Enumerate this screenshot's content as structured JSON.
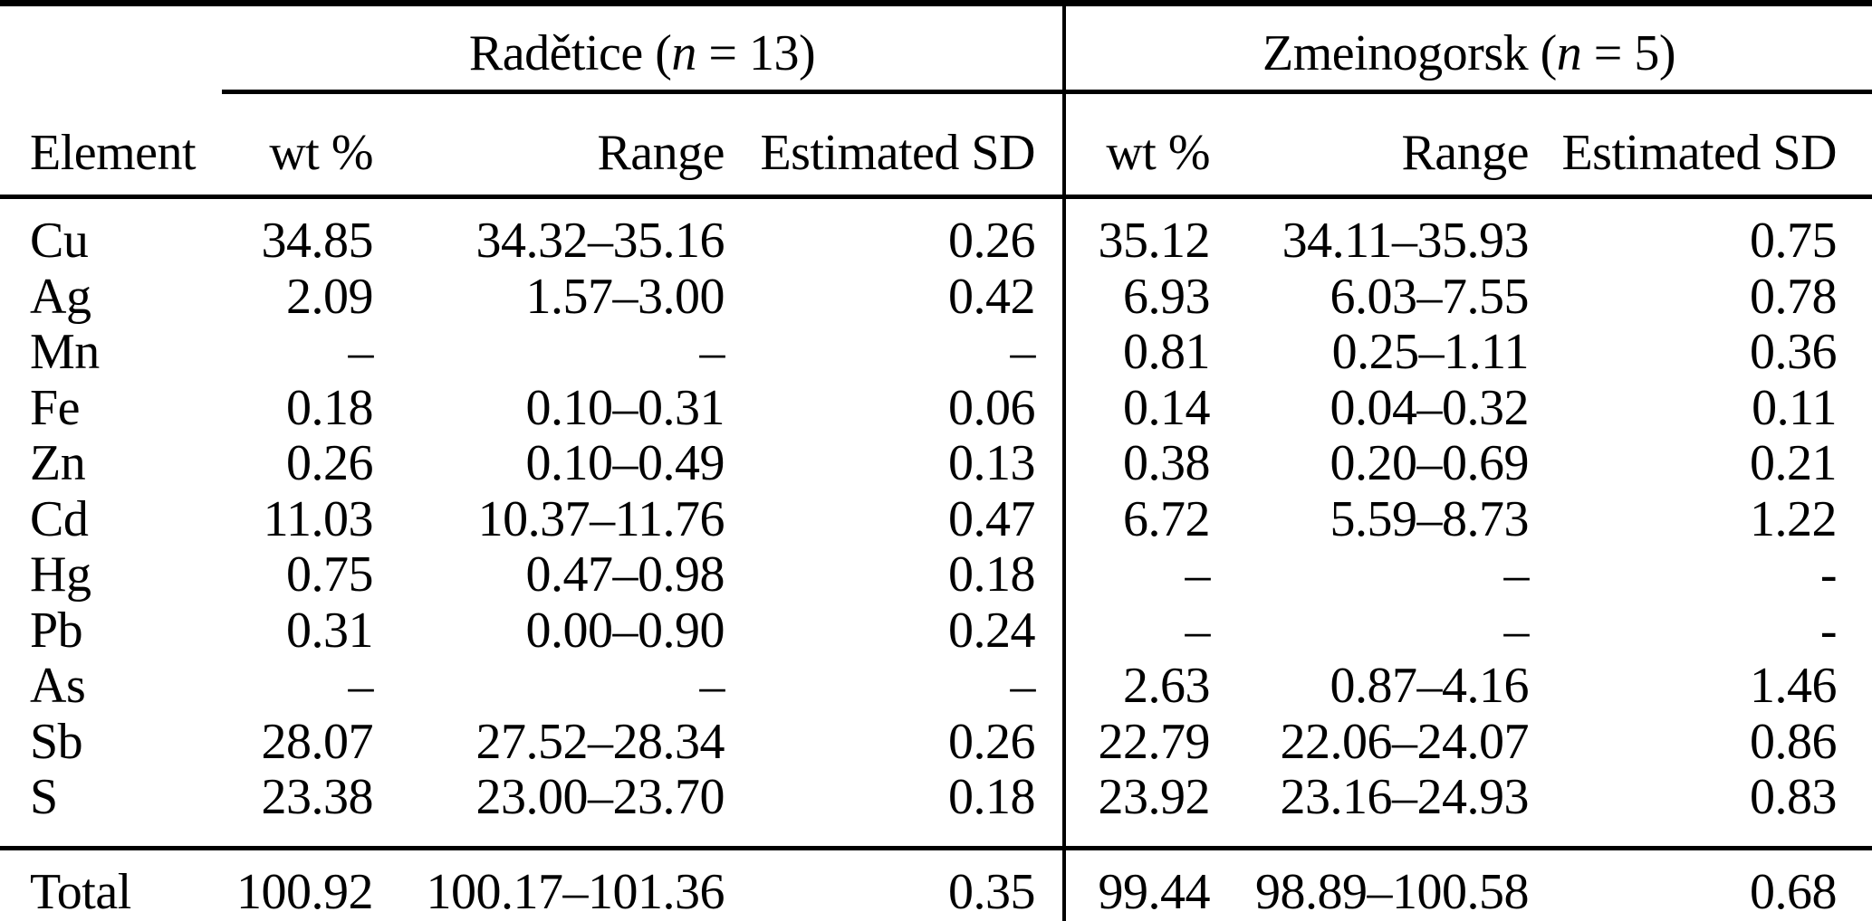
{
  "table": {
    "title_hint": "Elemental composition comparison table",
    "colors": {
      "text": "#000000",
      "background": "#ffffff",
      "rule": "#000000"
    },
    "groups": [
      {
        "prefix": "Radětice (",
        "nvar": "n",
        "suffix": " = 13)"
      },
      {
        "prefix": "Zmeinogorsk (",
        "nvar": "n",
        "suffix": " = 5)"
      }
    ],
    "columns": [
      "Element",
      "wt %",
      "Range",
      "Estimated SD",
      "wt %",
      "Range",
      "Estimated SD"
    ],
    "missing_marker": "–",
    "rows": [
      [
        "Cu",
        "34.85",
        "34.32–35.16",
        "0.26",
        "35.12",
        "34.11–35.93",
        "0.75"
      ],
      [
        "Ag",
        "2.09",
        "1.57–3.00",
        "0.42",
        "6.93",
        "6.03–7.55",
        "0.78"
      ],
      [
        "Mn",
        "–",
        "–",
        "–",
        "0.81",
        "0.25–1.11",
        "0.36"
      ],
      [
        "Fe",
        "0.18",
        "0.10–0.31",
        "0.06",
        "0.14",
        "0.04–0.32",
        "0.11"
      ],
      [
        "Zn",
        "0.26",
        "0.10–0.49",
        "0.13",
        "0.38",
        "0.20–0.69",
        "0.21"
      ],
      [
        "Cd",
        "11.03",
        "10.37–11.76",
        "0.47",
        "6.72",
        "5.59–8.73",
        "1.22"
      ],
      [
        "Hg",
        "0.75",
        "0.47–0.98",
        "0.18",
        "–",
        "–",
        "-"
      ],
      [
        "Pb",
        "0.31",
        "0.00–0.90",
        "0.24",
        "–",
        "–",
        "-"
      ],
      [
        "As",
        "–",
        "–",
        "–",
        "2.63",
        "0.87–4.16",
        "1.46"
      ],
      [
        "Sb",
        "28.07",
        "27.52–28.34",
        "0.26",
        "22.79",
        "22.06–24.07",
        "0.86"
      ],
      [
        "S",
        "23.38",
        "23.00–23.70",
        "0.18",
        "23.92",
        "23.16–24.93",
        "0.83"
      ]
    ],
    "total": [
      "Total",
      "100.92",
      "100.17–101.36",
      "0.35",
      "99.44",
      "98.89–100.58",
      "0.68"
    ]
  }
}
